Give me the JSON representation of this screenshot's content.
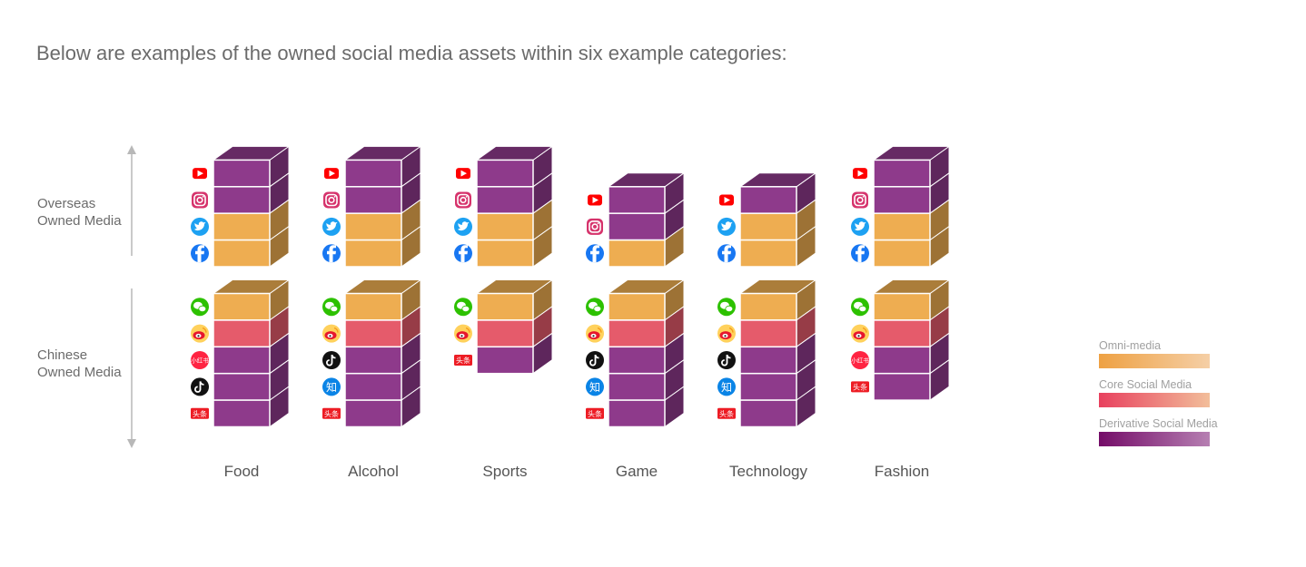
{
  "title": "Below are examples of the owned social media assets within six example categories:",
  "axis": {
    "overseas": {
      "line1": "Overseas",
      "line2": "Owned Media"
    },
    "chinese": {
      "line1": "Chinese",
      "line2": "Owned Media"
    }
  },
  "colors": {
    "omni": "#EEAD51",
    "core": "#E55B6B",
    "derivative": "#8E3A8B"
  },
  "platform_labels": {
    "xiaohongshu": "小红书",
    "zhihu": "知",
    "toutiao": "头条"
  },
  "categories": [
    {
      "name": "Food",
      "overseas": [
        {
          "platform": "youtube-icon",
          "type": "derivative"
        },
        {
          "platform": "instagram-icon",
          "type": "derivative"
        },
        {
          "platform": "twitter-icon",
          "type": "omni"
        },
        {
          "platform": "facebook-icon",
          "type": "omni"
        }
      ],
      "chinese": [
        {
          "platform": "wechat-icon",
          "type": "omni"
        },
        {
          "platform": "weibo-icon",
          "type": "core"
        },
        {
          "platform": "xiaohongshu-icon",
          "type": "derivative"
        },
        {
          "platform": "tiktok-icon",
          "type": "derivative"
        },
        {
          "platform": "toutiao-icon",
          "type": "derivative"
        }
      ]
    },
    {
      "name": "Alcohol",
      "overseas": [
        {
          "platform": "youtube-icon",
          "type": "derivative"
        },
        {
          "platform": "instagram-icon",
          "type": "derivative"
        },
        {
          "platform": "twitter-icon",
          "type": "omni"
        },
        {
          "platform": "facebook-icon",
          "type": "omni"
        }
      ],
      "chinese": [
        {
          "platform": "wechat-icon",
          "type": "omni"
        },
        {
          "platform": "weibo-icon",
          "type": "core"
        },
        {
          "platform": "tiktok-icon",
          "type": "derivative"
        },
        {
          "platform": "zhihu-icon",
          "type": "derivative"
        },
        {
          "platform": "toutiao-icon",
          "type": "derivative"
        }
      ]
    },
    {
      "name": "Sports",
      "overseas": [
        {
          "platform": "youtube-icon",
          "type": "derivative"
        },
        {
          "platform": "instagram-icon",
          "type": "derivative"
        },
        {
          "platform": "twitter-icon",
          "type": "omni"
        },
        {
          "platform": "facebook-icon",
          "type": "omni"
        }
      ],
      "chinese": [
        {
          "platform": "wechat-icon",
          "type": "omni"
        },
        {
          "platform": "weibo-icon",
          "type": "core"
        },
        {
          "platform": "toutiao-icon",
          "type": "derivative"
        }
      ]
    },
    {
      "name": "Game",
      "overseas": [
        {
          "platform": "youtube-icon",
          "type": "derivative"
        },
        {
          "platform": "instagram-icon",
          "type": "derivative"
        },
        {
          "platform": "facebook-icon",
          "type": "omni"
        }
      ],
      "chinese": [
        {
          "platform": "wechat-icon",
          "type": "omni"
        },
        {
          "platform": "weibo-icon",
          "type": "core"
        },
        {
          "platform": "tiktok-icon",
          "type": "derivative"
        },
        {
          "platform": "zhihu-icon",
          "type": "derivative"
        },
        {
          "platform": "toutiao-icon",
          "type": "derivative"
        }
      ]
    },
    {
      "name": "Technology",
      "overseas": [
        {
          "platform": "youtube-icon",
          "type": "derivative"
        },
        {
          "platform": "twitter-icon",
          "type": "omni"
        },
        {
          "platform": "facebook-icon",
          "type": "omni"
        }
      ],
      "chinese": [
        {
          "platform": "wechat-icon",
          "type": "omni"
        },
        {
          "platform": "weibo-icon",
          "type": "core"
        },
        {
          "platform": "tiktok-icon",
          "type": "derivative"
        },
        {
          "platform": "zhihu-icon",
          "type": "derivative"
        },
        {
          "platform": "toutiao-icon",
          "type": "derivative"
        }
      ]
    },
    {
      "name": "Fashion",
      "overseas": [
        {
          "platform": "youtube-icon",
          "type": "derivative"
        },
        {
          "platform": "instagram-icon",
          "type": "derivative"
        },
        {
          "platform": "twitter-icon",
          "type": "omni"
        },
        {
          "platform": "facebook-icon",
          "type": "omni"
        }
      ],
      "chinese": [
        {
          "platform": "wechat-icon",
          "type": "omni"
        },
        {
          "platform": "weibo-icon",
          "type": "core"
        },
        {
          "platform": "xiaohongshu-icon",
          "type": "derivative"
        },
        {
          "platform": "toutiao-icon",
          "type": "derivative"
        }
      ]
    }
  ],
  "legend": [
    {
      "label": "Omni-media",
      "from": "#EEA143",
      "to": "#F5CFA6"
    },
    {
      "label": "Core Social Media",
      "from": "#E8405E",
      "to": "#F2BE9A"
    },
    {
      "label": "Derivative Social Media",
      "from": "#740C68",
      "to": "#B67FB2"
    }
  ]
}
